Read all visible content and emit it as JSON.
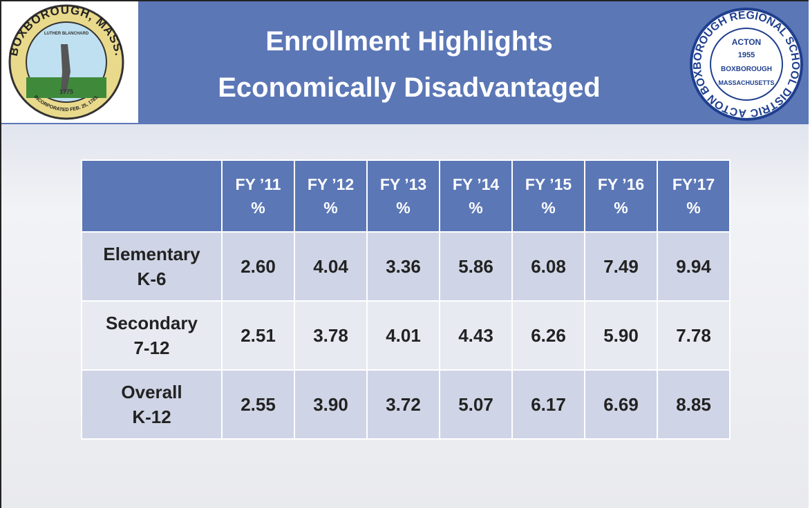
{
  "header": {
    "title_lines": [
      "Enrollment Highlights",
      "Economically Disadvantaged"
    ]
  },
  "left_seal": {
    "ring_top": "BOXBOROUGH, MASS.",
    "banner": "LUTHER BLANCHARD",
    "year": "1775",
    "ring_bottom": "INCORPORATED FEB. 25, 1783."
  },
  "right_seal": {
    "ring": "ACTON BOXBOROUGH REGIONAL SCHOOL DISTRICT",
    "center": [
      "ACTON",
      "1955",
      "BOXBOROUGH",
      "MASSACHUSETTS"
    ]
  },
  "table": {
    "columns": [
      {
        "label": "FY ’11",
        "unit": "%"
      },
      {
        "label": "FY ’12",
        "unit": "%"
      },
      {
        "label": "FY ’13",
        "unit": "%"
      },
      {
        "label": "FY ’14",
        "unit": "%"
      },
      {
        "label": "FY ’15",
        "unit": "%"
      },
      {
        "label": "FY ’16",
        "unit": "%"
      },
      {
        "label": "FY’17",
        "unit": "%"
      }
    ],
    "rows": [
      {
        "name": "Elementary",
        "grades": "K-6",
        "cells": [
          "2.60",
          "4.04",
          "3.36",
          "5.86",
          "6.08",
          "7.49",
          "9.94"
        ]
      },
      {
        "name": "Secondary",
        "grades": "7-12",
        "cells": [
          "2.51",
          "3.78",
          "4.01",
          "4.43",
          "6.26",
          "5.90",
          "7.78"
        ]
      },
      {
        "name": "Overall",
        "grades": "K-12",
        "cells": [
          "2.55",
          "3.90",
          "3.72",
          "5.07",
          "6.17",
          "6.69",
          "8.85"
        ]
      }
    ]
  }
}
